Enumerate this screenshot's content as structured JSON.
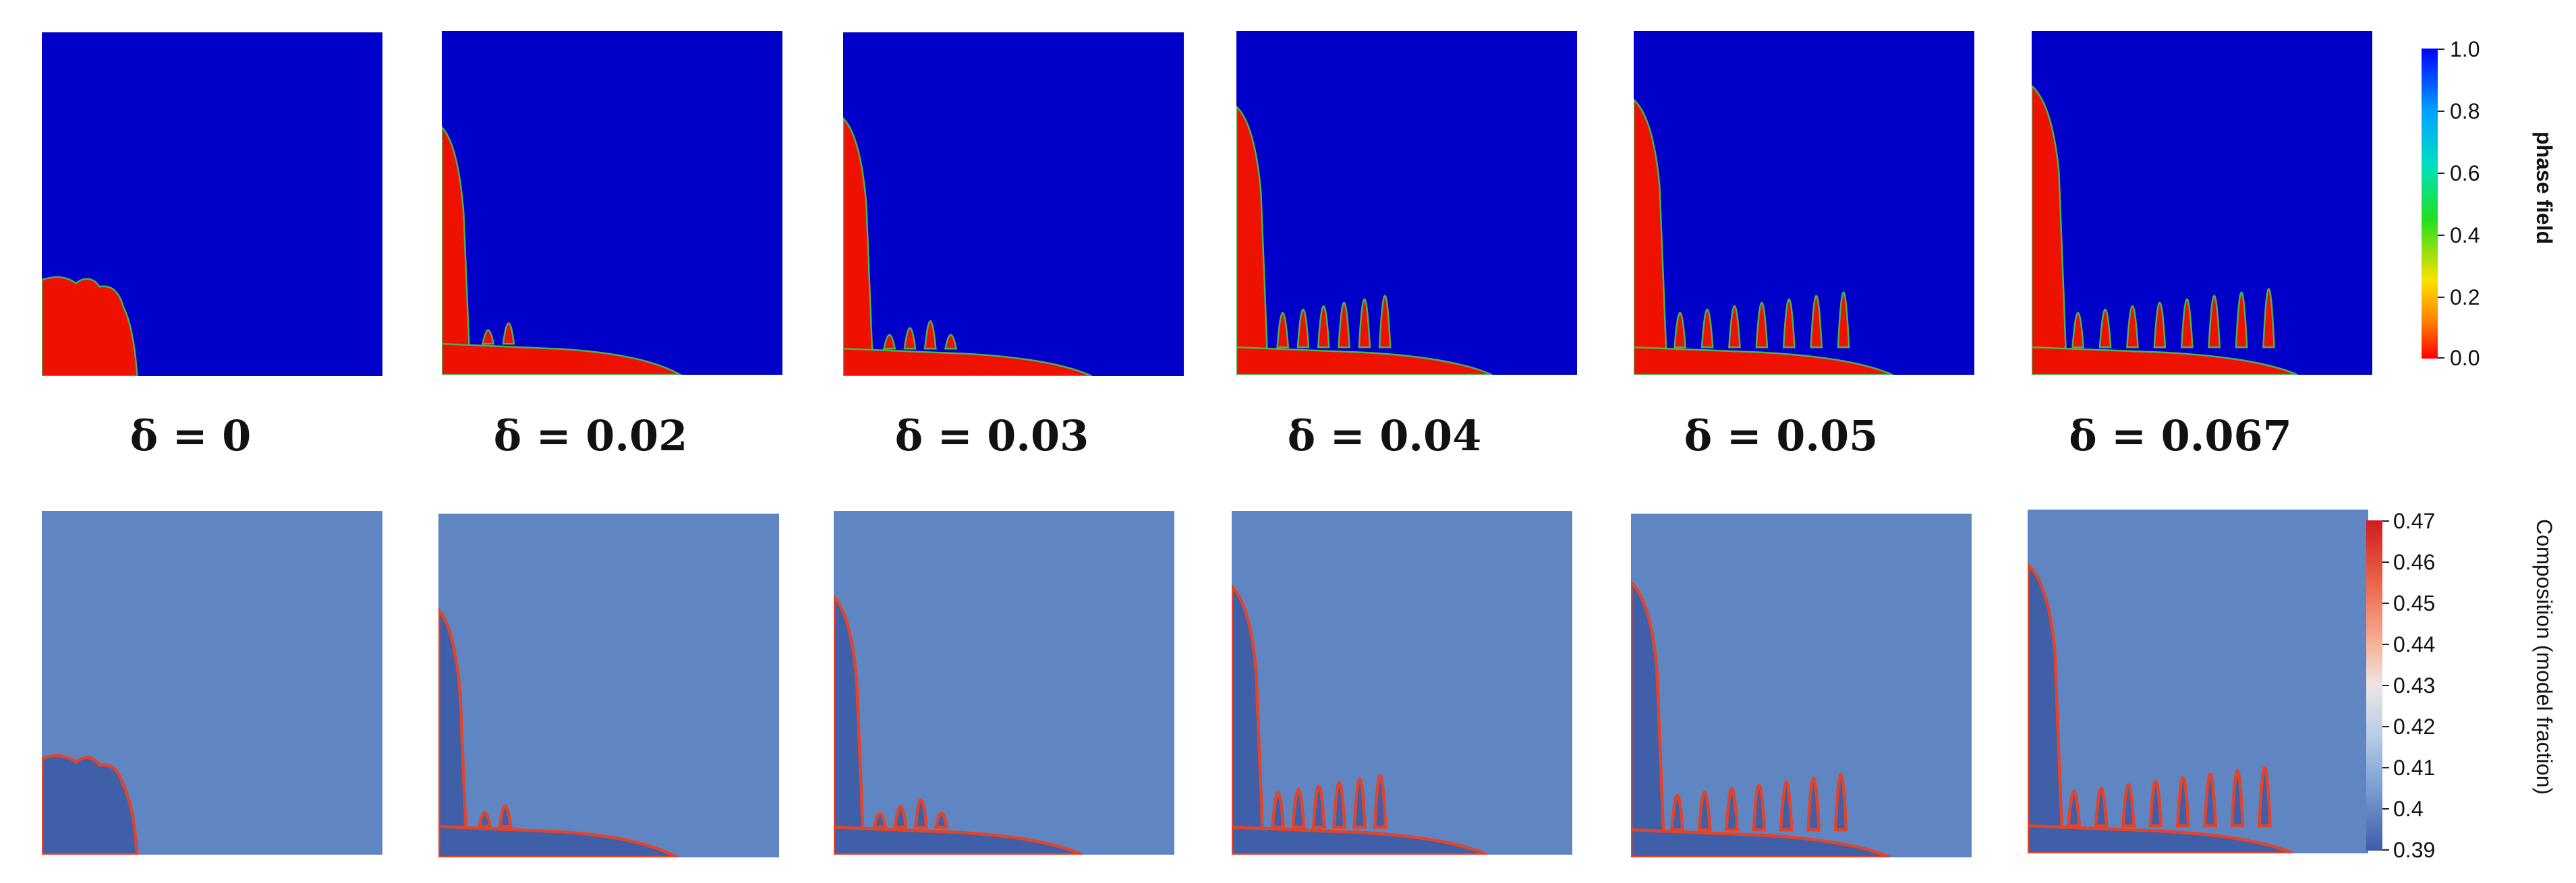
{
  "figure": {
    "delta_labels": [
      "δ = 0",
      "δ = 0.02",
      "δ = 0.03",
      "δ = 0.04",
      "δ = 0.05",
      "δ = 0.067"
    ],
    "phase_colorbar": {
      "title": "phase field",
      "ticks": [
        "1.0",
        "0.8",
        "0.6",
        "0.4",
        "0.2",
        "0.0"
      ]
    },
    "composition_colorbar": {
      "title": "Composition (model fraction)",
      "ticks": [
        "0.47",
        "0.46",
        "0.45",
        "0.44",
        "0.43",
        "0.42",
        "0.41",
        "0.4",
        "0.39"
      ]
    },
    "colors": {
      "phase_high": "#0000c8",
      "phase_low": "#ee1100",
      "phase_interface": "#4caf50",
      "composition_matrix": "#5f86c2",
      "composition_depleted": "#3f5fa8",
      "composition_enriched": "#e0452c"
    }
  }
}
